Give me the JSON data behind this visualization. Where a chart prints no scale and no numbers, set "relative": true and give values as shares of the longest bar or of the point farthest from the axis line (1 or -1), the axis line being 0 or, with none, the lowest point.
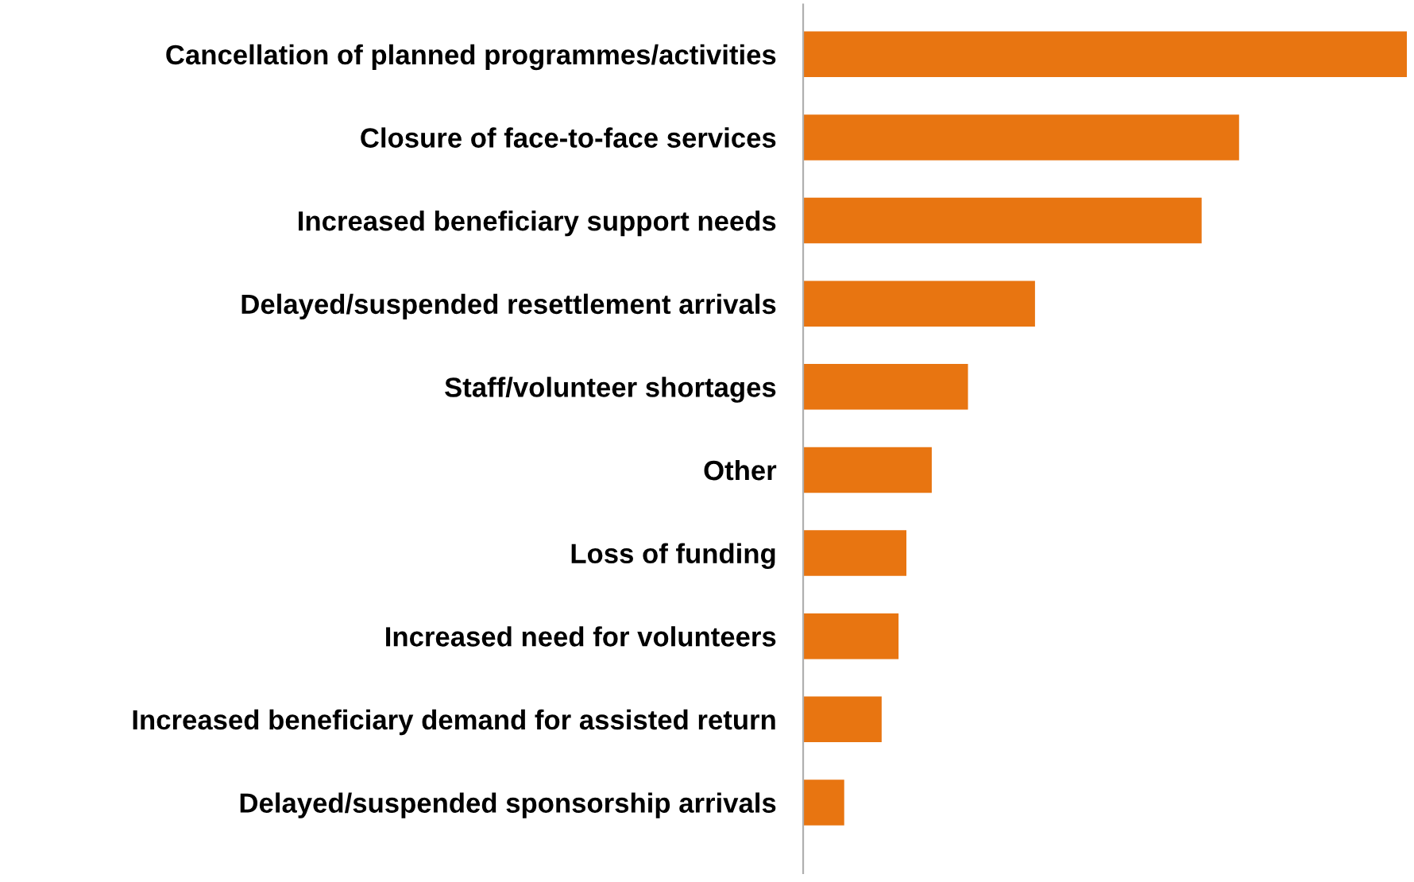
{
  "chart_data": {
    "type": "bar",
    "orientation": "horizontal",
    "relative": true,
    "categories": [
      "Cancellation of planned programmes/activities",
      "Closure of face-to-face services",
      "Increased beneficiary support needs",
      "Delayed/suspended resettlement arrivals",
      "Staff/volunteer shortages",
      "Other",
      "Loss of funding",
      "Increased need for volunteers",
      "Increased beneficiary demand for assisted return",
      "Delayed/suspended sponsorship arrivals"
    ],
    "values": [
      1,
      0.722,
      0.66,
      0.384,
      0.273,
      0.213,
      0.171,
      0.158,
      0.13,
      0.068
    ],
    "color": "#e87511"
  }
}
